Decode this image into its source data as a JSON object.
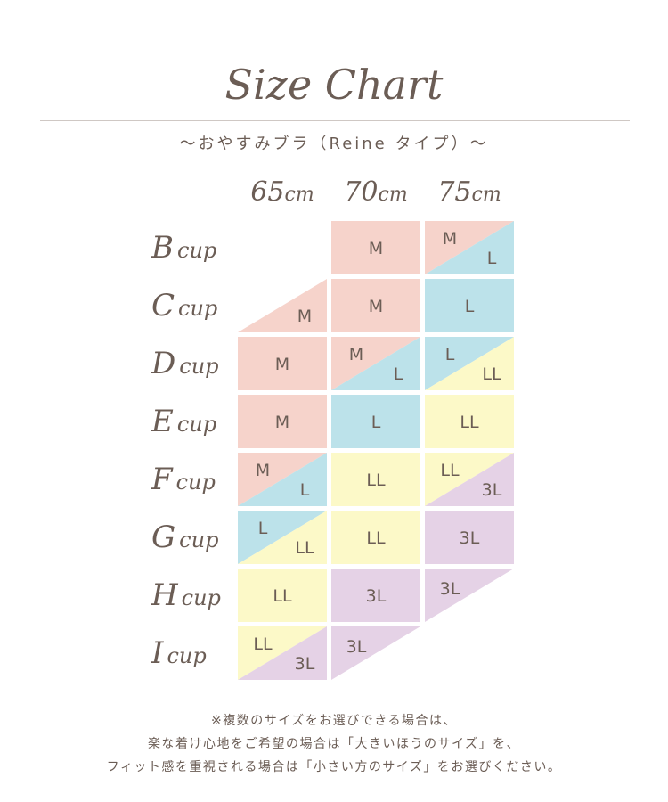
{
  "header": {
    "title": "Size Chart",
    "subtitle": "〜おやすみブラ（Reine タイプ）〜"
  },
  "colors": {
    "M": "#f6d3cb",
    "L": "#bce2ea",
    "LL": "#fcf9c8",
    "3L": "#e5d2e6",
    "text": "#6b5d55"
  },
  "columns": [
    {
      "num": "65",
      "unit": "cm"
    },
    {
      "num": "70",
      "unit": "cm"
    },
    {
      "num": "75",
      "unit": "cm"
    }
  ],
  "rows": [
    {
      "letter": "B",
      "suffix": "cup",
      "cells": [
        {
          "type": "empty"
        },
        {
          "type": "full",
          "a": "M"
        },
        {
          "type": "split",
          "a": "M",
          "b": "L"
        }
      ]
    },
    {
      "letter": "C",
      "suffix": "cup",
      "cells": [
        {
          "type": "tri-br",
          "a": "M"
        },
        {
          "type": "full",
          "a": "M"
        },
        {
          "type": "full",
          "a": "L"
        }
      ]
    },
    {
      "letter": "D",
      "suffix": "cup",
      "cells": [
        {
          "type": "full",
          "a": "M"
        },
        {
          "type": "split",
          "a": "M",
          "b": "L"
        },
        {
          "type": "split",
          "a": "L",
          "b": "LL"
        }
      ]
    },
    {
      "letter": "E",
      "suffix": "cup",
      "cells": [
        {
          "type": "full",
          "a": "M"
        },
        {
          "type": "full",
          "a": "L"
        },
        {
          "type": "full",
          "a": "LL"
        }
      ]
    },
    {
      "letter": "F",
      "suffix": "cup",
      "cells": [
        {
          "type": "split",
          "a": "M",
          "b": "L"
        },
        {
          "type": "full",
          "a": "LL"
        },
        {
          "type": "split",
          "a": "LL",
          "b": "3L"
        }
      ]
    },
    {
      "letter": "G",
      "suffix": "cup",
      "cells": [
        {
          "type": "split",
          "a": "L",
          "b": "LL"
        },
        {
          "type": "full",
          "a": "LL"
        },
        {
          "type": "full",
          "a": "3L"
        }
      ]
    },
    {
      "letter": "H",
      "suffix": "cup",
      "cells": [
        {
          "type": "full",
          "a": "LL"
        },
        {
          "type": "full",
          "a": "3L"
        },
        {
          "type": "tri-tl",
          "a": "3L"
        }
      ]
    },
    {
      "letter": "I",
      "suffix": "cup",
      "cells": [
        {
          "type": "split",
          "a": "LL",
          "b": "3L"
        },
        {
          "type": "tri-tl",
          "a": "3L"
        },
        {
          "type": "empty"
        }
      ]
    }
  ],
  "note": {
    "line1": "※複数のサイズをお選びできる場合は、",
    "line2": "楽な着け心地をご希望の場合は「大きいほうのサイズ」を、",
    "line3": "フィット感を重視される場合は「小さい方のサイズ」をお選びください。"
  }
}
